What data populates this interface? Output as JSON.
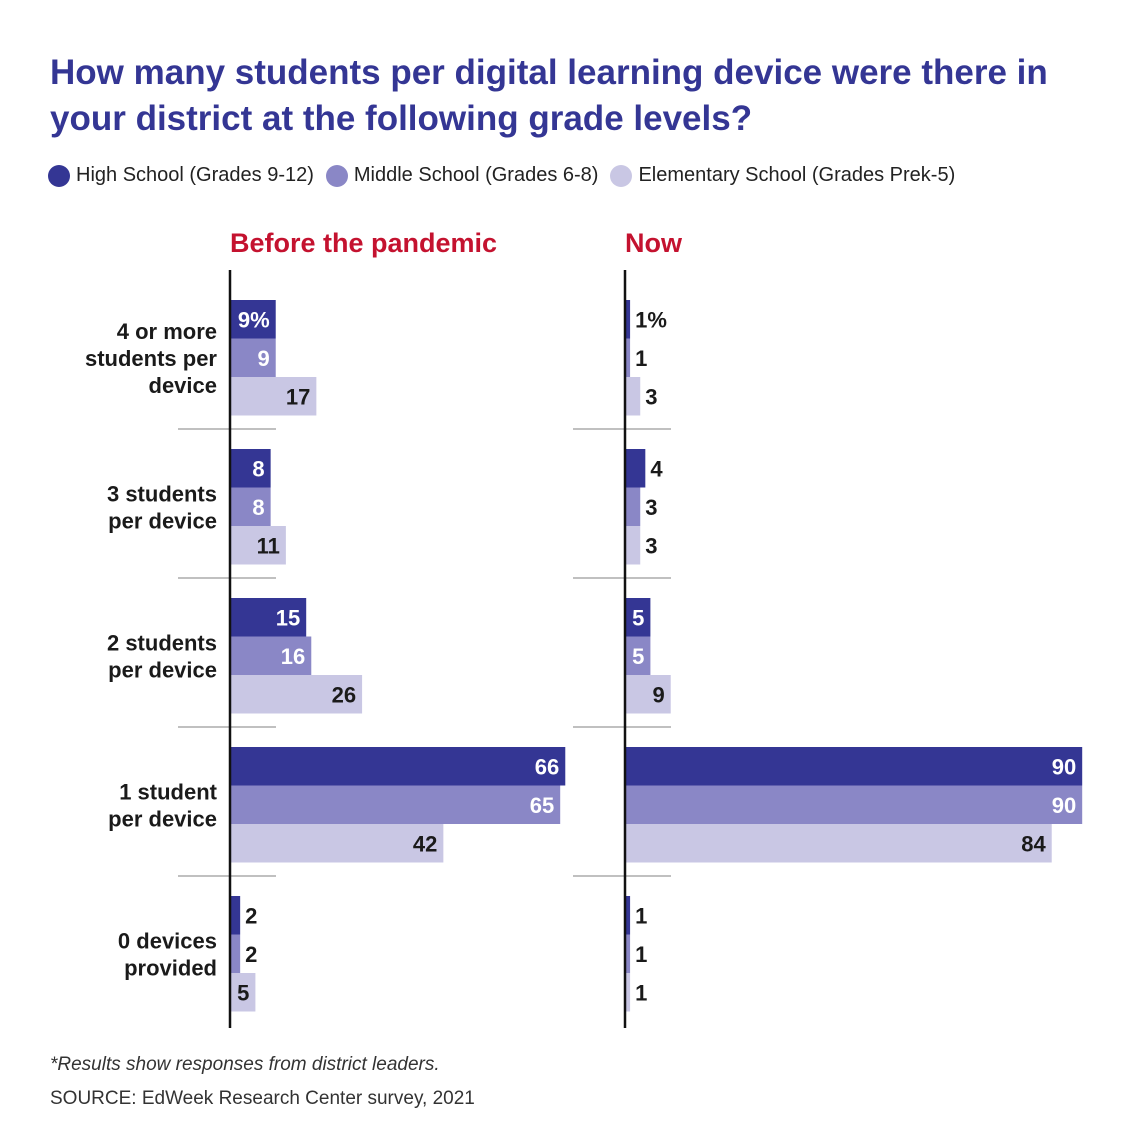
{
  "title": "How many students per digital learning device were there in your district at the following grade levels?",
  "colors": {
    "title": "#343694",
    "panel_title": "#c4122f",
    "high_school": "#343694",
    "middle_school": "#8a87c6",
    "elementary_school": "#c9c7e4"
  },
  "legend": [
    {
      "label": "High School (Grades 9-12)",
      "color": "#343694"
    },
    {
      "label": "Middle School (Grades 6-8)",
      "color": "#8a87c6"
    },
    {
      "label": "Elementary School (Grades Prek-5)",
      "color": "#c9c7e4"
    }
  ],
  "chart_data": {
    "type": "bar",
    "orientation": "horizontal",
    "categories": [
      "4 or more students per device",
      "3 students per device",
      "2 students per device",
      "1 student per device",
      "0 devices provided"
    ],
    "category_lines": [
      [
        "4 or more",
        "students per",
        "device"
      ],
      [
        "3 students",
        "per device"
      ],
      [
        "2 students",
        "per device"
      ],
      [
        "1 student",
        "per device"
      ],
      [
        "0 devices",
        "provided"
      ]
    ],
    "unit": "%",
    "xlim": [
      0,
      100
    ],
    "panels": [
      {
        "title": "Before the pandemic",
        "series": [
          {
            "name": "High School (Grades 9-12)",
            "values": [
              9,
              8,
              15,
              66,
              2
            ],
            "labels": [
              "9%",
              "8",
              "15",
              "66",
              "2"
            ]
          },
          {
            "name": "Middle School (Grades 6-8)",
            "values": [
              9,
              8,
              16,
              65,
              2
            ],
            "labels": [
              "9",
              "8",
              "16",
              "65",
              "2"
            ]
          },
          {
            "name": "Elementary School (Grades Prek-5)",
            "values": [
              17,
              11,
              26,
              42,
              5
            ],
            "labels": [
              "17",
              "11",
              "26",
              "42",
              "5"
            ]
          }
        ]
      },
      {
        "title": "Now",
        "series": [
          {
            "name": "High School (Grades 9-12)",
            "values": [
              1,
              4,
              5,
              90,
              1
            ],
            "labels": [
              "1%",
              "4",
              "5",
              "90",
              "1"
            ]
          },
          {
            "name": "Middle School (Grades 6-8)",
            "values": [
              1,
              3,
              5,
              90,
              1
            ],
            "labels": [
              "1",
              "3",
              "5",
              "90",
              "1"
            ]
          },
          {
            "name": "Elementary School (Grades Prek-5)",
            "values": [
              3,
              3,
              9,
              84,
              1
            ],
            "labels": [
              "3",
              "3",
              "9",
              "84",
              "1"
            ]
          }
        ]
      }
    ]
  },
  "note": "*Results show responses from district leaders.",
  "source": "SOURCE: EdWeek Research Center survey, 2021"
}
